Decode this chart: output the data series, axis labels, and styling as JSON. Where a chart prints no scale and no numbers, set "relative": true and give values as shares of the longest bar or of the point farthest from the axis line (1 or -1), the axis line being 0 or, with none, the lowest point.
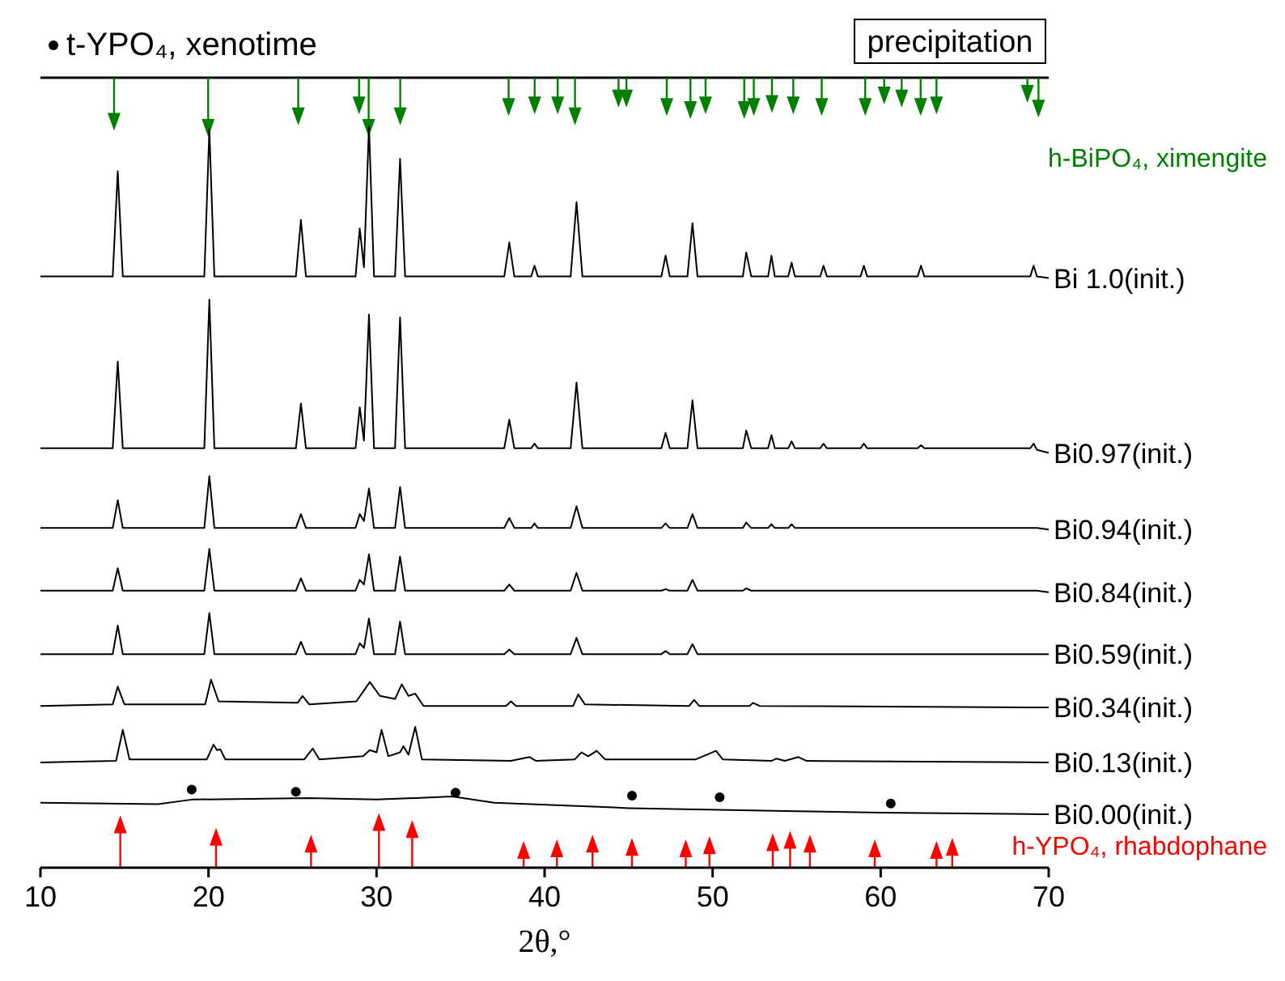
{
  "chart_data": {
    "type": "line",
    "relative": true,
    "xlabel": "2θ,°",
    "xlim": [
      10,
      70
    ],
    "xticks": [
      10,
      20,
      30,
      40,
      50,
      60,
      70
    ],
    "legend": "top left",
    "annotations": [
      "precipitation"
    ],
    "x": [
      10,
      14.3,
      14.6,
      14.9,
      19.75,
      20.05,
      20.35,
      25.2,
      25.5,
      25.8,
      28.75,
      29.0,
      29.25,
      29.55,
      29.85,
      31.1,
      31.4,
      31.7,
      37.6,
      37.9,
      38.2,
      39.2,
      39.4,
      39.6,
      41.55,
      41.9,
      42.25,
      46.95,
      47.2,
      47.45,
      48.5,
      48.8,
      49.1,
      51.8,
      52.0,
      52.3,
      53.3,
      53.5,
      53.7,
      54.5,
      54.7,
      54.9,
      56.4,
      56.6,
      56.8,
      58.8,
      59.0,
      59.2,
      62.2,
      62.4,
      62.6,
      68.9,
      69.1,
      69.3,
      70
    ],
    "series": [
      {
        "name": "Bi 1.0(init.)",
        "color": "#000000",
        "values": [
          0.764,
          0.764,
          0.9,
          0.764,
          0.764,
          0.954,
          0.764,
          0.764,
          0.837,
          0.764,
          0.764,
          0.826,
          0.776,
          0.958,
          0.764,
          0.764,
          0.916,
          0.764,
          0.764,
          0.808,
          0.764,
          0.764,
          0.778,
          0.764,
          0.764,
          0.86,
          0.764,
          0.764,
          0.791,
          0.764,
          0.764,
          0.833,
          0.764,
          0.764,
          0.795,
          0.764,
          0.764,
          0.791,
          0.764,
          0.764,
          0.782,
          0.764,
          0.764,
          0.778,
          0.764,
          0.764,
          0.778,
          0.764,
          0.764,
          0.778,
          0.764,
          0.764,
          0.778,
          0.764,
          0.762
        ]
      },
      {
        "name": "Bi0.97(init.)",
        "color": "#000000",
        "values": [
          0.542,
          0.542,
          0.654,
          0.542,
          0.542,
          0.734,
          0.542,
          0.542,
          0.6,
          0.542,
          0.542,
          0.595,
          0.552,
          0.715,
          0.542,
          0.542,
          0.711,
          0.542,
          0.542,
          0.579,
          0.542,
          0.542,
          0.548,
          0.542,
          0.542,
          0.627,
          0.542,
          0.542,
          0.562,
          0.542,
          0.542,
          0.604,
          0.542,
          0.542,
          0.565,
          0.542,
          0.542,
          0.559,
          0.542,
          0.542,
          0.551,
          0.542,
          0.542,
          0.548,
          0.542,
          0.542,
          0.548,
          0.542,
          0.542,
          0.546,
          0.542,
          0.542,
          0.548,
          0.54,
          0.536
        ]
      },
      {
        "name": "Bi0.94(init.)",
        "color": "#000000",
        "values": [
          0.439,
          0.439,
          0.475,
          0.439,
          0.439,
          0.506,
          0.439,
          0.439,
          0.457,
          0.439,
          0.439,
          0.457,
          0.448,
          0.49,
          0.439,
          0.439,
          0.492,
          0.439,
          0.439,
          0.452,
          0.439,
          0.439,
          0.445,
          0.439,
          0.439,
          0.467,
          0.439,
          0.439,
          0.445,
          0.439,
          0.439,
          0.457,
          0.439,
          0.439,
          0.446,
          0.439,
          0.439,
          0.444,
          0.439,
          0.439,
          0.444,
          0.439,
          0.439,
          0.439,
          0.439,
          0.439,
          0.439,
          0.439,
          0.439,
          0.439,
          0.439,
          0.439,
          0.439,
          0.439,
          0.437
        ]
      },
      {
        "name": "Bi0.84(init.)",
        "color": "#000000",
        "values": [
          0.358,
          0.358,
          0.387,
          0.358,
          0.358,
          0.412,
          0.358,
          0.358,
          0.374,
          0.358,
          0.358,
          0.372,
          0.366,
          0.405,
          0.358,
          0.358,
          0.402,
          0.358,
          0.358,
          0.366,
          0.358,
          0.358,
          0.358,
          0.358,
          0.358,
          0.381,
          0.358,
          0.358,
          0.36,
          0.358,
          0.358,
          0.372,
          0.358,
          0.358,
          0.361,
          0.358,
          0.358,
          0.358,
          0.358,
          0.358,
          0.358,
          0.358,
          0.358,
          0.358,
          0.358,
          0.358,
          0.358,
          0.358,
          0.358,
          0.358,
          0.358,
          0.358,
          0.358,
          0.358,
          0.356
        ]
      },
      {
        "name": "Bi0.59(init.)",
        "color": "#000000",
        "values": [
          0.276,
          0.276,
          0.313,
          0.276,
          0.276,
          0.329,
          0.276,
          0.276,
          0.292,
          0.276,
          0.276,
          0.29,
          0.284,
          0.322,
          0.276,
          0.276,
          0.318,
          0.276,
          0.276,
          0.282,
          0.276,
          0.276,
          0.276,
          0.276,
          0.276,
          0.297,
          0.276,
          0.276,
          0.28,
          0.276,
          0.276,
          0.289,
          0.276,
          0.276,
          0.276,
          0.276,
          0.276,
          0.276,
          0.276,
          0.276,
          0.276,
          0.276,
          0.276,
          0.276,
          0.276,
          0.276,
          0.276,
          0.276,
          0.276,
          0.276,
          0.276,
          0.276,
          0.276,
          0.276,
          0.276
        ]
      },
      {
        "name": "Bi0.34(init.)",
        "color": "#000000",
        "x": [
          10,
          14.3,
          14.6,
          15.0,
          19.8,
          20.15,
          20.6,
          25.3,
          25.6,
          26.0,
          28.8,
          29.6,
          30.2,
          31.1,
          31.5,
          31.9,
          32.3,
          32.8,
          37.7,
          38.0,
          38.3,
          41.7,
          42.0,
          42.4,
          48.6,
          48.9,
          49.2,
          52.2,
          52.4,
          52.8,
          70
        ],
        "values": [
          0.209,
          0.211,
          0.234,
          0.211,
          0.211,
          0.243,
          0.215,
          0.213,
          0.222,
          0.211,
          0.215,
          0.24,
          0.222,
          0.218,
          0.237,
          0.222,
          0.225,
          0.209,
          0.209,
          0.215,
          0.209,
          0.209,
          0.224,
          0.211,
          0.209,
          0.217,
          0.209,
          0.209,
          0.213,
          0.209,
          0.207
        ]
      },
      {
        "name": "Bi0.13(init.)",
        "color": "#000000",
        "x": [
          10,
          14.5,
          14.9,
          15.3,
          19.9,
          20.3,
          20.5,
          20.7,
          21.0,
          25.7,
          26.2,
          26.6,
          29.2,
          29.6,
          30.0,
          30.3,
          30.7,
          31.4,
          31.6,
          31.9,
          32.3,
          32.7,
          38.0,
          39.1,
          39.5,
          41.8,
          42.2,
          42.6,
          43.1,
          43.6,
          49.0,
          50.2,
          50.6,
          53.5,
          53.8,
          54.3,
          55.1,
          55.6,
          70
        ],
        "values": [
          0.136,
          0.138,
          0.178,
          0.14,
          0.14,
          0.159,
          0.152,
          0.153,
          0.14,
          0.14,
          0.154,
          0.14,
          0.144,
          0.152,
          0.149,
          0.178,
          0.144,
          0.149,
          0.157,
          0.146,
          0.182,
          0.14,
          0.138,
          0.143,
          0.138,
          0.14,
          0.149,
          0.144,
          0.151,
          0.14,
          0.14,
          0.151,
          0.14,
          0.138,
          0.141,
          0.138,
          0.143,
          0.138,
          0.136
        ]
      },
      {
        "name": "Bi0.00(init.)",
        "color": "#000000",
        "x": [
          10,
          17,
          19,
          26,
          30,
          34.5,
          37,
          45,
          55,
          60,
          70
        ],
        "values": [
          0.084,
          0.082,
          0.088,
          0.09,
          0.088,
          0.092,
          0.084,
          0.077,
          0.073,
          0.071,
          0.069
        ]
      },
      {
        "name": "t-YPO₄, xenotime",
        "type": "scatter",
        "marker": "circle",
        "color": "#000000",
        "x": [
          19.0,
          25.2,
          34.7,
          45.2,
          50.42,
          60.6
        ],
        "values": [
          0.101,
          0.098,
          0.097,
          0.093,
          0.091,
          0.083
        ]
      },
      {
        "name": "h-BiPO₄, ximengite",
        "type": "lollipop",
        "marker": "triangle",
        "color": "#008000",
        "x": [
          14.38,
          19.98,
          25.34,
          28.96,
          29.53,
          31.41,
          37.86,
          39.41,
          40.78,
          41.81,
          44.4,
          44.87,
          47.27,
          48.68,
          49.58,
          51.88,
          52.45,
          53.53,
          54.8,
          56.49,
          59.08,
          60.21,
          61.25,
          62.38,
          63.32,
          68.73,
          69.39
        ],
        "values": [
          0.964,
          0.956,
          0.971,
          0.985,
          0.956,
          0.971,
          0.983,
          0.985,
          0.985,
          0.971,
          0.994,
          0.994,
          0.983,
          0.979,
          0.985,
          0.979,
          0.983,
          0.987,
          0.985,
          0.983,
          0.983,
          0.998,
          0.994,
          0.983,
          0.985,
          1.0,
          0.981
        ]
      },
      {
        "name": "h-YPO₄, rhabdophane",
        "type": "lollipop",
        "marker": "triangle",
        "color": "#ff0000",
        "x": [
          14.75,
          20.45,
          26.1,
          30.14,
          32.12,
          38.75,
          40.73,
          42.85,
          45.2,
          48.4,
          49.81,
          53.58,
          54.61,
          55.79,
          59.65,
          63.32,
          64.26
        ],
        "values": [
          0.056,
          0.04,
          0.031,
          0.059,
          0.05,
          0.023,
          0.025,
          0.031,
          0.027,
          0.025,
          0.029,
          0.033,
          0.036,
          0.031,
          0.025,
          0.023,
          0.027
        ]
      }
    ]
  }
}
